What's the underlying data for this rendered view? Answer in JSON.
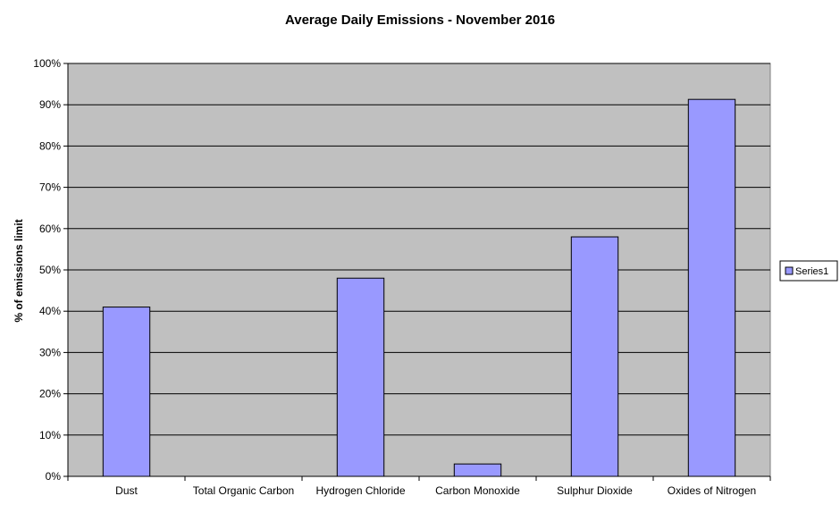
{
  "chart_data": {
    "type": "bar",
    "title": "Average Daily Emissions - November 2016",
    "ylabel": "% of emissions  limit",
    "xlabel": "",
    "categories": [
      "Dust",
      "Total Organic Carbon",
      "Hydrogen Chloride",
      "Carbon Monoxide",
      "Sulphur Dioxide",
      "Oxides of Nitrogen"
    ],
    "series": [
      {
        "name": "Series1",
        "values": [
          41,
          0,
          48,
          3,
          58,
          91.3
        ],
        "color": "#9999ff"
      }
    ],
    "ylim": [
      0,
      100
    ],
    "yticks": [
      0,
      10,
      20,
      30,
      40,
      50,
      60,
      70,
      80,
      90,
      100
    ],
    "ytick_labels": [
      "0%",
      "10%",
      "20%",
      "30%",
      "40%",
      "50%",
      "60%",
      "70%",
      "80%",
      "90%",
      "100%"
    ],
    "grid": true,
    "legend_position": "right",
    "plot_background": "#c0c0c0"
  }
}
